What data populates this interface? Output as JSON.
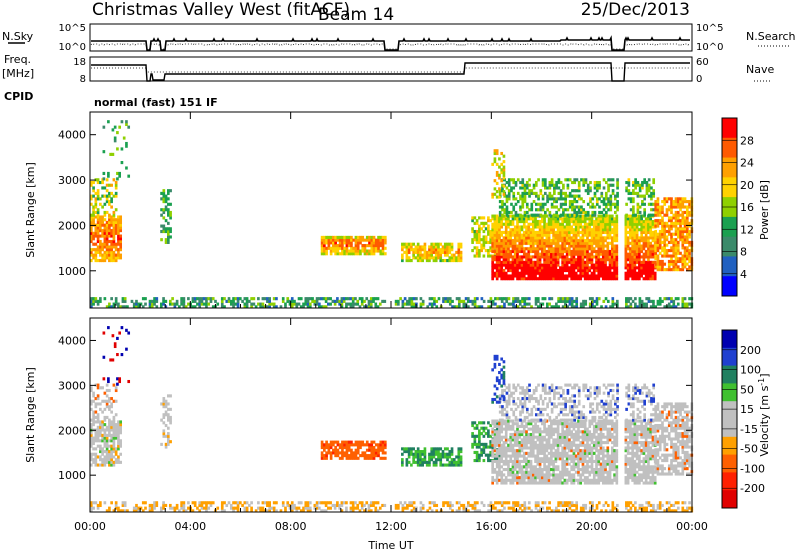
{
  "header": {
    "title": "Christmas Valley West (fitACF)",
    "beam": "Beam 14",
    "date": "25/Dec/2013",
    "mode": "normal (fast) 151 IF"
  },
  "labels": {
    "nsky": "N.Sky",
    "nsearch": "N.Search",
    "freq_line1": "Freq.",
    "freq_line2": "[MHz]",
    "nave": "Nave",
    "cpid": "CPID",
    "nsky_ticks": [
      "10^5",
      "10^0"
    ],
    "nsearch_ticks": [
      "10^5",
      "10^0"
    ],
    "freq_ticks": [
      "18",
      "8"
    ],
    "nave_ticks": [
      "60",
      "0"
    ]
  },
  "chart_data": [
    {
      "type": "heatmap",
      "name": "power-panel",
      "xlabel": "",
      "ylabel": "Slant Range [km]",
      "xlim": [
        0,
        24
      ],
      "ylim": [
        180,
        4500
      ],
      "yticks": [
        1000,
        2000,
        3000,
        4000
      ],
      "colorbar": {
        "label": "Power [dB]",
        "ticks": [
          "28",
          "24",
          "20",
          "16",
          "12",
          "8",
          "4"
        ],
        "colors": [
          "#ff0000",
          "#ff5a00",
          "#ffa000",
          "#ffd200",
          "#8fd000",
          "#1aa050",
          "#3a8a6a",
          "#2060c0",
          "#0000ff"
        ]
      }
    },
    {
      "type": "heatmap",
      "name": "velocity-panel",
      "xlabel": "Time UT",
      "ylabel": "Slant Range [km]",
      "xlim": [
        0,
        24
      ],
      "ylim": [
        180,
        4500
      ],
      "yticks": [
        1000,
        2000,
        3000,
        4000
      ],
      "xtick_labels": [
        "00:00",
        "04:00",
        "08:00",
        "12:00",
        "16:00",
        "20:00",
        "00:00"
      ],
      "colorbar": {
        "label": "Velocity [m s-1]",
        "ticks": [
          "200",
          "100",
          "50",
          "15",
          "-15",
          "-50",
          "-100",
          "-200"
        ],
        "colors": [
          "#0000b0",
          "#2040d0",
          "#208060",
          "#40c030",
          "#c0c0c0",
          "#c0c0c0",
          "#ffa000",
          "#ff6000",
          "#ff2000",
          "#e00000"
        ]
      }
    }
  ]
}
